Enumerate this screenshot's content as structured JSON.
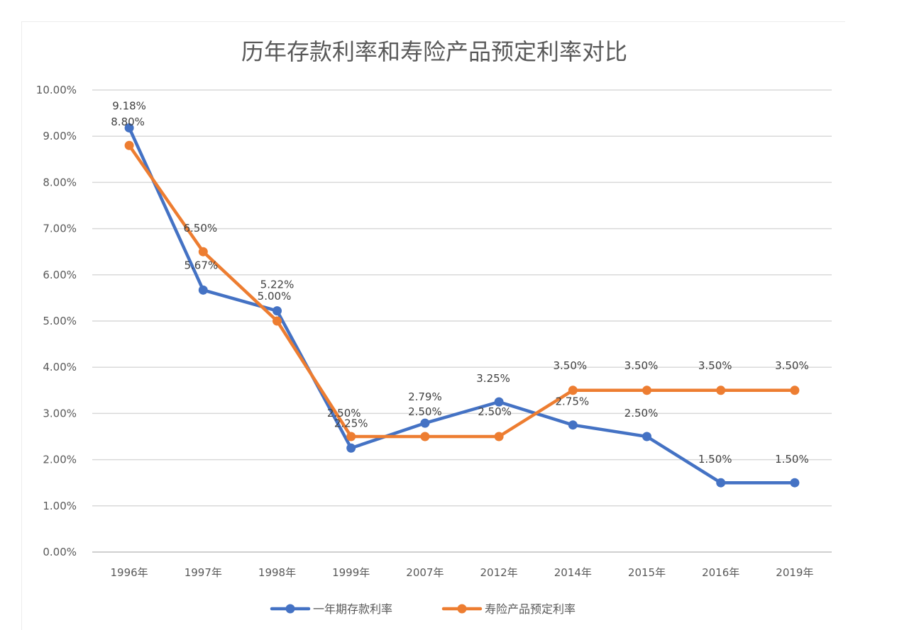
{
  "chart_data": {
    "type": "line",
    "title": "历年存款利率和寿险产品预定利率对比",
    "categories": [
      "1996年",
      "1997年",
      "1998年",
      "1999年",
      "2007年",
      "2012年",
      "2014年",
      "2015年",
      "2016年",
      "2019年"
    ],
    "ylim": [
      0,
      10
    ],
    "yticks": [
      "0.00%",
      "1.00%",
      "2.00%",
      "3.00%",
      "4.00%",
      "5.00%",
      "6.00%",
      "7.00%",
      "8.00%",
      "9.00%",
      "10.00%"
    ],
    "grid": true,
    "legend_position": "bottom",
    "series": [
      {
        "name": "一年期存款利率",
        "color": "#4472C4",
        "values": [
          9.18,
          5.67,
          5.22,
          2.25,
          2.79,
          3.25,
          2.75,
          2.5,
          1.5,
          1.5
        ],
        "labels": [
          "9.18%",
          "5.67%",
          "5.22%",
          "2.25%",
          "2.79%",
          "3.25%",
          "2.75%",
          "2.50%",
          "1.50%",
          "1.50%"
        ]
      },
      {
        "name": "寿险产品预定利率",
        "color": "#ED7D31",
        "values": [
          8.8,
          6.5,
          5.0,
          2.5,
          2.5,
          2.5,
          3.5,
          3.5,
          3.5,
          3.5
        ],
        "labels": [
          "8.80%",
          "6.50%",
          "5.00%",
          "2.50%",
          "2.50%",
          "2.50%",
          "3.50%",
          "3.50%",
          "3.50%",
          "3.50%"
        ]
      }
    ]
  }
}
